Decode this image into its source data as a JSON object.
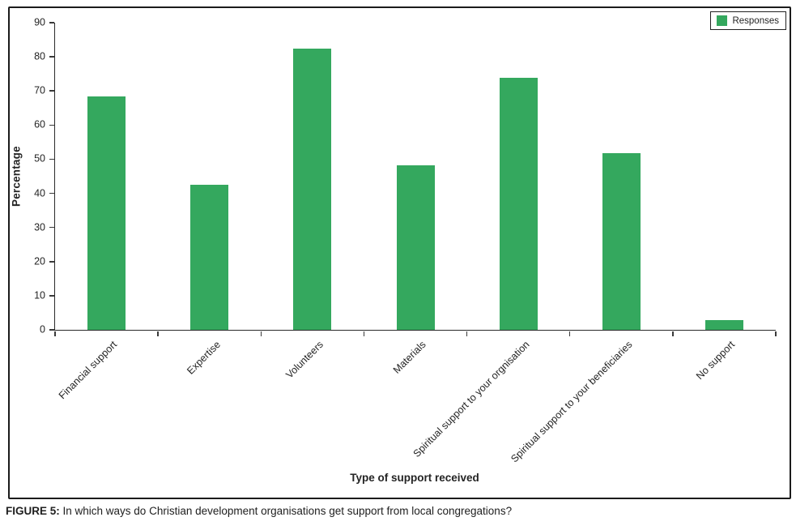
{
  "chart_data": {
    "type": "bar",
    "title": "",
    "categories": [
      "Financial support",
      "Expertise",
      "Volunteers",
      "Materials",
      "Spiritual support to your orgnisation",
      "Spiritual support to your beneficiaries",
      "No support"
    ],
    "series": [
      {
        "name": "Responses",
        "values": [
          68.3,
          42.5,
          82.5,
          48.3,
          73.9,
          51.7,
          2.9
        ]
      }
    ],
    "xlabel": "Type of support received",
    "ylabel": "Percentage",
    "ylim": [
      0,
      90
    ],
    "yticks": [
      0,
      10,
      20,
      30,
      40,
      50,
      60,
      70,
      80,
      90
    ],
    "grid": false,
    "legend_position": "top-right",
    "bar_color": "#34a85e"
  },
  "legend": {
    "label": "Responses",
    "swatch_color": "#34a85e"
  },
  "caption": {
    "label": "FIGURE 5:",
    "text": " In which ways do Christian development organisations get support from local congregations?"
  }
}
